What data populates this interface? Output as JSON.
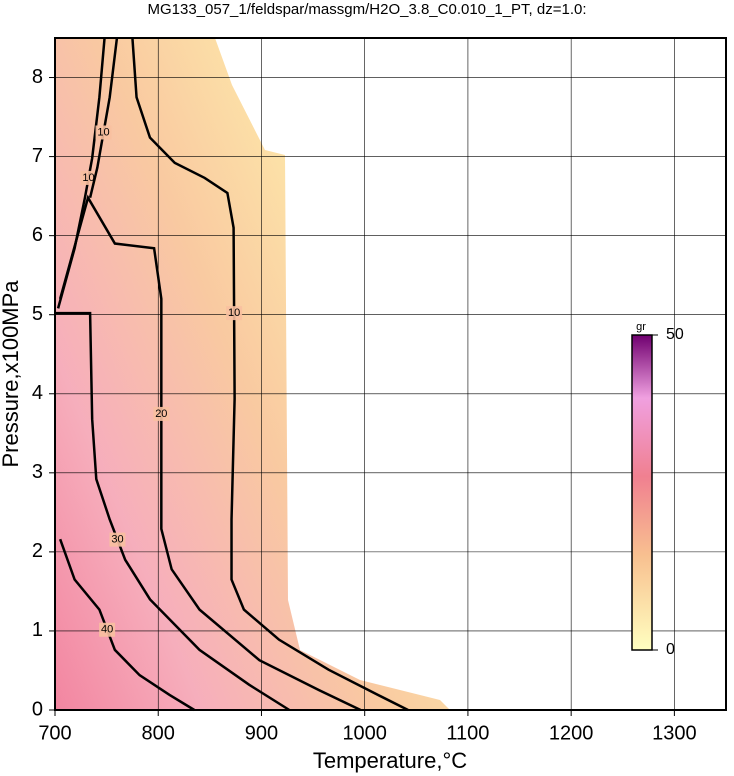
{
  "chart_data": {
    "type": "contour",
    "title": "MG133_057_1/feldspar/massgm/H2O_3.8_C0.010_1_PT, dz=1.0:",
    "x_label": "Temperature,°C",
    "y_label": "Pressure,x100MPa",
    "xlim": [
      700,
      1350
    ],
    "ylim": [
      0,
      8.5
    ],
    "xticks": [
      700,
      800,
      900,
      1000,
      1100,
      1200,
      1300
    ],
    "yticks": [
      0,
      1,
      2,
      3,
      4,
      5,
      6,
      7,
      8
    ],
    "grid": true,
    "line_color": "#000000",
    "contours": [
      {
        "level": 10,
        "x": [
          775,
          779,
          792,
          816,
          845,
          867,
          873,
          874,
          871,
          871,
          883,
          917,
          965,
          1013,
          1042
        ],
        "y": [
          8.5,
          7.75,
          7.24,
          6.92,
          6.73,
          6.54,
          6.1,
          3.94,
          2.41,
          1.65,
          1.27,
          0.89,
          0.51,
          0.19,
          0
        ]
      },
      {
        "level": 20,
        "x": [
          705,
          732,
          758,
          796,
          803,
          803,
          813,
          840,
          898,
          956,
          996
        ],
        "y": [
          5.2,
          6.48,
          5.9,
          5.84,
          5.2,
          2.29,
          1.78,
          1.27,
          0.63,
          0.25,
          0
        ]
      },
      {
        "level": 30,
        "x": [
          700,
          734,
          736,
          740,
          753,
          768,
          792,
          840,
          888,
          927
        ],
        "y": [
          5.02,
          5.02,
          3.68,
          2.92,
          2.41,
          1.9,
          1.4,
          0.76,
          0.32,
          0
        ]
      },
      {
        "level": 40,
        "x": [
          705,
          719,
          743,
          758,
          782,
          811,
          835
        ],
        "y": [
          2.16,
          1.65,
          1.27,
          0.76,
          0.44,
          0.19,
          0
        ]
      },
      {
        "level": 10,
        "x": [
          748,
          743,
          736,
          729,
          719,
          703
        ],
        "y": [
          8.5,
          7.75,
          6.98,
          6.48,
          5.84,
          5.08
        ]
      },
      {
        "level": 10,
        "x": [
          760,
          753,
          741,
          734
        ],
        "y": [
          8.5,
          7.75,
          6.86,
          6.48
        ]
      }
    ],
    "colorbar": {
      "label": "gr",
      "lim": [
        0,
        50
      ],
      "ticks": [
        0,
        50
      ]
    }
  }
}
